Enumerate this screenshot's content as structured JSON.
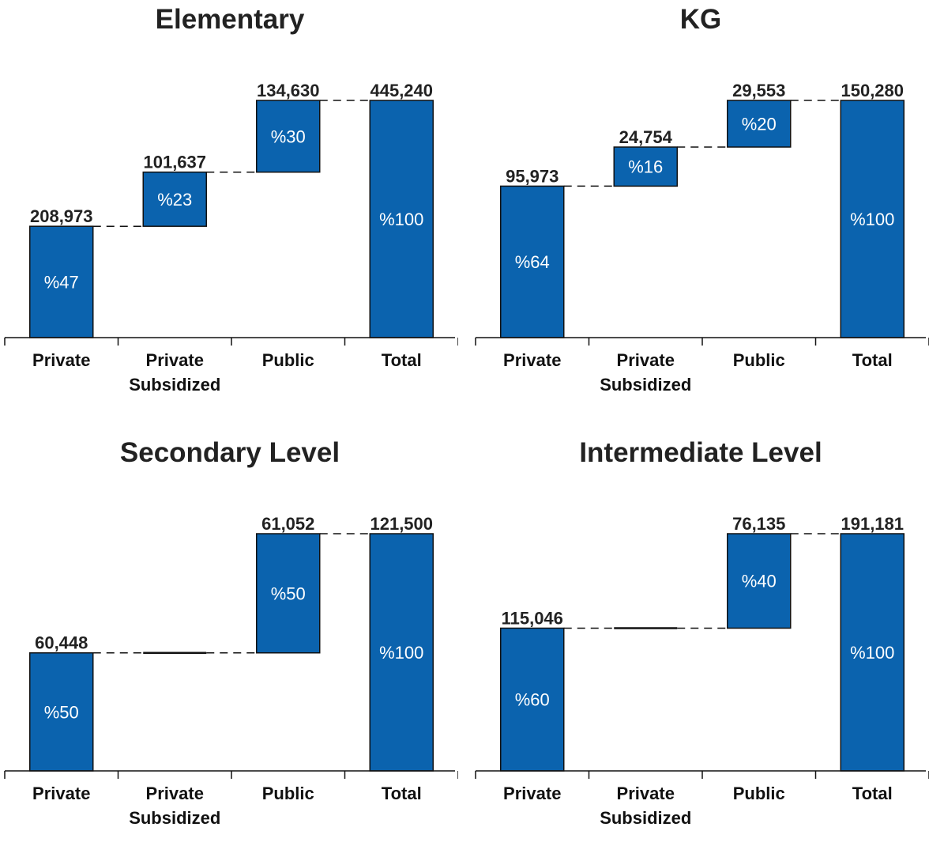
{
  "bar_color": "#0b63ae",
  "chart_data": [
    {
      "type": "waterfall",
      "title": "Elementary",
      "categories": [
        "Private",
        "Private Subsidized",
        "Public",
        "Total"
      ],
      "values": [
        208973,
        101637,
        134630,
        445240
      ],
      "value_labels": [
        "208,973",
        "101,637",
        "134,630",
        "445,240"
      ],
      "percent_labels": [
        "%47",
        "%23",
        "%30",
        "%100"
      ],
      "ylim": [
        0,
        445240
      ]
    },
    {
      "type": "waterfall",
      "title": "KG",
      "categories": [
        "Private",
        "Private Subsidized",
        "Public",
        "Total"
      ],
      "values": [
        95973,
        24754,
        29553,
        150280
      ],
      "value_labels": [
        "95,973",
        "24,754",
        "29,553",
        "150,280"
      ],
      "percent_labels": [
        "%64",
        "%16",
        "%20",
        "%100"
      ],
      "ylim": [
        0,
        150280
      ]
    },
    {
      "type": "waterfall",
      "title": "Secondary Level",
      "categories": [
        "Private",
        "Private Subsidized",
        "Public",
        "Total"
      ],
      "values": [
        60448,
        0,
        61052,
        121500
      ],
      "value_labels": [
        "60,448",
        "",
        "61,052",
        "121,500"
      ],
      "percent_labels": [
        "%50",
        "",
        "%50",
        "%100"
      ],
      "ylim": [
        0,
        121500
      ]
    },
    {
      "type": "waterfall",
      "title": "Intermediate Level",
      "categories": [
        "Private",
        "Private Subsidized",
        "Public",
        "Total"
      ],
      "values": [
        115046,
        0,
        76135,
        191181
      ],
      "value_labels": [
        "115,046",
        "",
        "76,135",
        "191,181"
      ],
      "percent_labels": [
        "%60",
        "",
        "%40",
        "%100"
      ],
      "ylim": [
        0,
        191181
      ]
    }
  ]
}
